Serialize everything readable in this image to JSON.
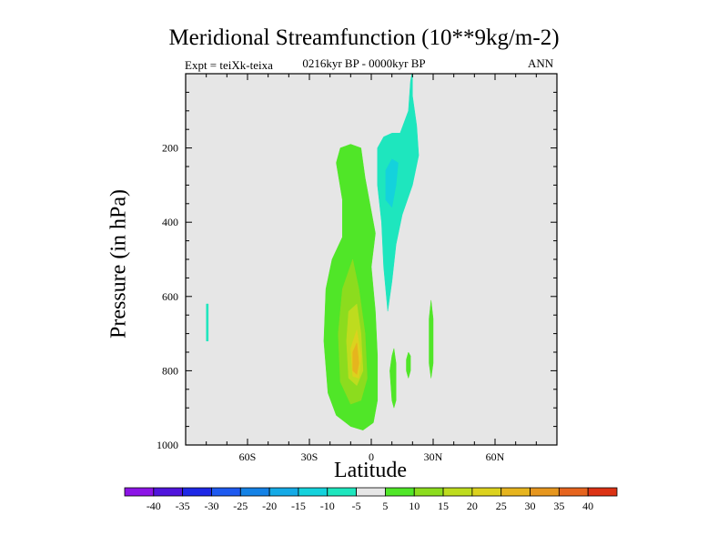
{
  "title": "Meridional Streamfunction (10**9kg/m-2)",
  "subtitle": "0216kyr BP - 0000kyr BP",
  "expt_label": "Expt = teiXk-teixa",
  "season_label": "ANN",
  "chart_data": {
    "type": "heatmap",
    "title": "Meridional Streamfunction (10**9kg/m-2)",
    "xlabel": "Latitude",
    "ylabel": "Pressure (in hPa)",
    "xlim": [
      -90,
      90
    ],
    "ylim": [
      1000,
      0
    ],
    "x_ticks": [
      {
        "value": -60,
        "label": "60S"
      },
      {
        "value": -30,
        "label": "30S"
      },
      {
        "value": 0,
        "label": "0"
      },
      {
        "value": 30,
        "label": "30N"
      },
      {
        "value": 60,
        "label": "60N"
      }
    ],
    "y_ticks": [
      {
        "value": 200,
        "label": "200"
      },
      {
        "value": 400,
        "label": "400"
      },
      {
        "value": 600,
        "label": "600"
      },
      {
        "value": 800,
        "label": "800"
      },
      {
        "value": 1000,
        "label": "1000"
      }
    ],
    "background_color": "#e6e6e6",
    "colorbar": {
      "labels": [
        "-40",
        "-35",
        "-30",
        "-25",
        "-20",
        "-15",
        "-10",
        "-5",
        "5",
        "10",
        "15",
        "20",
        "25",
        "30",
        "35",
        "40"
      ],
      "colors": [
        "#8c14e6",
        "#5014dc",
        "#1e28e6",
        "#1e5af0",
        "#1482e6",
        "#14aae6",
        "#14d2dc",
        "#1ee6be",
        "#e6e6e6",
        "#50e628",
        "#8cdc1e",
        "#bedc1e",
        "#dcd21e",
        "#e6b41e",
        "#e6961e",
        "#e6641e",
        "#dc3214"
      ]
    },
    "regions": [
      {
        "name": "positive cell 5-10",
        "color": "#50e628",
        "points": [
          [
            -10,
            190
          ],
          [
            -5,
            200
          ],
          [
            -3,
            280
          ],
          [
            0,
            370
          ],
          [
            2,
            430
          ],
          [
            0,
            520
          ],
          [
            2,
            640
          ],
          [
            3,
            760
          ],
          [
            3,
            880
          ],
          [
            1,
            940
          ],
          [
            -4,
            960
          ],
          [
            -10,
            950
          ],
          [
            -17,
            920
          ],
          [
            -21,
            860
          ],
          [
            -23,
            720
          ],
          [
            -22,
            580
          ],
          [
            -19,
            500
          ],
          [
            -14,
            440
          ],
          [
            -14,
            340
          ],
          [
            -17,
            240
          ],
          [
            -15,
            200
          ]
        ]
      },
      {
        "name": "positive cell 10-15",
        "color": "#8cdc1e",
        "points": [
          [
            -9,
            500
          ],
          [
            -6,
            580
          ],
          [
            -3,
            700
          ],
          [
            -2,
            820
          ],
          [
            -5,
            880
          ],
          [
            -10,
            890
          ],
          [
            -15,
            830
          ],
          [
            -16,
            700
          ],
          [
            -14,
            580
          ]
        ]
      },
      {
        "name": "positive cell 15-20",
        "color": "#bedc1e",
        "points": [
          [
            -7,
            620
          ],
          [
            -5,
            700
          ],
          [
            -4,
            800
          ],
          [
            -7,
            840
          ],
          [
            -11,
            820
          ],
          [
            -12,
            720
          ],
          [
            -11,
            640
          ]
        ]
      },
      {
        "name": "positive cell 20-25",
        "color": "#dcd21e",
        "points": [
          [
            -7,
            690
          ],
          [
            -5,
            760
          ],
          [
            -6,
            820
          ],
          [
            -9,
            815
          ],
          [
            -10,
            740
          ]
        ]
      },
      {
        "name": "positive cell 25-30",
        "color": "#e6b41e",
        "points": [
          [
            -7,
            725
          ],
          [
            -6,
            780
          ],
          [
            -7,
            810
          ],
          [
            -9,
            800
          ],
          [
            -9,
            750
          ]
        ]
      },
      {
        "name": "negative cell -5 to -10",
        "color": "#1ee6be",
        "points": [
          [
            20,
            -10
          ],
          [
            20,
            60
          ],
          [
            22,
            140
          ],
          [
            23,
            220
          ],
          [
            20,
            300
          ],
          [
            15,
            380
          ],
          [
            12,
            460
          ],
          [
            10,
            560
          ],
          [
            8,
            640
          ],
          [
            6,
            520
          ],
          [
            5,
            400
          ],
          [
            3,
            300
          ],
          [
            3,
            200
          ],
          [
            6,
            170
          ],
          [
            10,
            160
          ],
          [
            14,
            160
          ],
          [
            18,
            100
          ],
          [
            19,
            20
          ]
        ]
      },
      {
        "name": "negative cell -10 to -15",
        "color": "#14d2dc",
        "points": [
          [
            10,
            230
          ],
          [
            13,
            240
          ],
          [
            12,
            300
          ],
          [
            10,
            360
          ],
          [
            7,
            340
          ],
          [
            7,
            260
          ]
        ]
      },
      {
        "name": "small positive 5-10 a",
        "color": "#50e628",
        "points": [
          [
            11,
            740
          ],
          [
            12,
            780
          ],
          [
            12,
            880
          ],
          [
            11,
            900
          ],
          [
            10,
            880
          ],
          [
            9,
            800
          ],
          [
            10,
            760
          ]
        ]
      },
      {
        "name": "small positive 5-10 b",
        "color": "#50e628",
        "points": [
          [
            18,
            750
          ],
          [
            19,
            760
          ],
          [
            19,
            800
          ],
          [
            18,
            820
          ],
          [
            17,
            800
          ],
          [
            17,
            770
          ]
        ]
      },
      {
        "name": "small positive 5-10 c",
        "color": "#50e628",
        "points": [
          [
            29,
            610
          ],
          [
            30,
            660
          ],
          [
            30,
            780
          ],
          [
            29,
            820
          ],
          [
            28,
            780
          ],
          [
            28,
            660
          ]
        ]
      },
      {
        "name": "small negative -5 to -10",
        "color": "#1ee6be",
        "points": [
          [
            -79,
            620
          ],
          [
            -79,
            720
          ],
          [
            -80,
            720
          ],
          [
            -80,
            620
          ]
        ]
      }
    ]
  }
}
